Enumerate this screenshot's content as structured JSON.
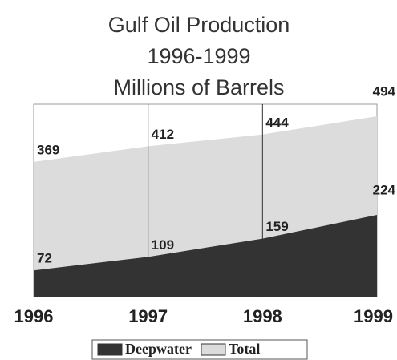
{
  "chart_data": {
    "type": "area",
    "title": [
      "Gulf Oil Production",
      "1996-1999",
      "Millions of Barrels"
    ],
    "categories": [
      "1996",
      "1997",
      "1998",
      "1999"
    ],
    "series": [
      {
        "name": "Deepwater",
        "color": "#333333",
        "values": [
          72,
          109,
          159,
          224
        ]
      },
      {
        "name": "Total",
        "color": "#dcdcdc",
        "values": [
          369,
          412,
          444,
          494
        ]
      }
    ],
    "legend": "bottom"
  }
}
